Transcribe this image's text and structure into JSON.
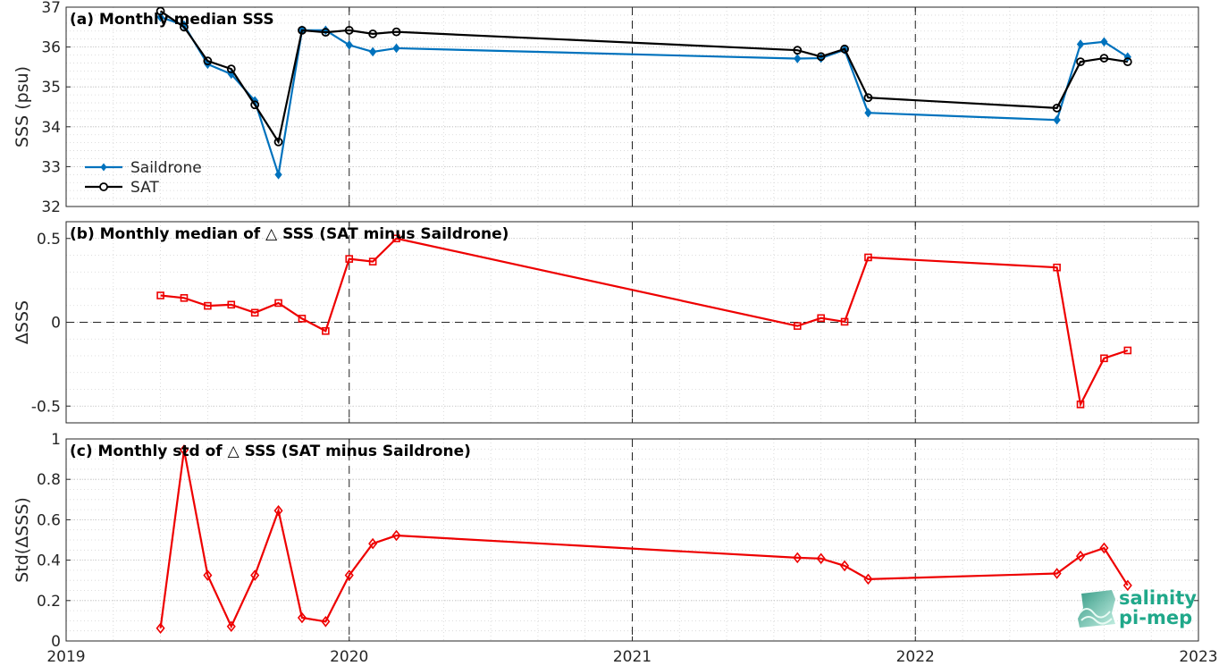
{
  "chart_data": [
    {
      "type": "line",
      "title": "(a) Monthly median SSS",
      "ylabel": "SSS (psu)",
      "ylim": [
        32,
        37
      ],
      "yticks": [
        32,
        33,
        34,
        35,
        36,
        37
      ],
      "xlim": [
        "2019-01",
        "2023-01"
      ],
      "xticks": [
        "2019",
        "2020",
        "2021",
        "2022",
        "2023"
      ],
      "grid": true,
      "legend_position": "bottom-left",
      "x": [
        "2019-05",
        "2019-06",
        "2019-07",
        "2019-08",
        "2019-09",
        "2019-10",
        "2019-11",
        "2019-12",
        "2020-01",
        "2020-02",
        "2020-03",
        "2021-08",
        "2021-09",
        "2021-10",
        "2021-11",
        "2022-07",
        "2022-08",
        "2022-09",
        "2022-10"
      ],
      "series": [
        {
          "name": "Saildrone",
          "color": "#0072bd",
          "marker": "diamond-filled",
          "values": [
            36.75,
            36.55,
            35.57,
            35.32,
            34.65,
            32.8,
            36.42,
            36.42,
            36.05,
            35.88,
            35.97,
            35.71,
            35.72,
            35.93,
            34.35,
            34.17,
            36.07,
            36.13,
            35.75
          ]
        },
        {
          "name": "SAT",
          "color": "#000000",
          "marker": "circle-open",
          "values": [
            36.9,
            36.5,
            35.65,
            35.45,
            34.55,
            33.62,
            36.42,
            36.37,
            36.42,
            36.33,
            36.38,
            35.92,
            35.76,
            35.95,
            34.73,
            34.47,
            35.63,
            35.72,
            35.63
          ]
        }
      ]
    },
    {
      "type": "line",
      "title": "(b) Monthly median of △ SSS (SAT minus Saildrone)",
      "ylabel": "ΔSSS",
      "ylim": [
        -0.6,
        0.6
      ],
      "yticks": [
        -0.5,
        0,
        0.5
      ],
      "ytick_labels": [
        "-0.5",
        "0",
        "0.5"
      ],
      "xlim": [
        "2019-01",
        "2023-01"
      ],
      "grid": true,
      "zero_line": true,
      "x": [
        "2019-05",
        "2019-06",
        "2019-07",
        "2019-08",
        "2019-09",
        "2019-10",
        "2019-11",
        "2019-12",
        "2020-01",
        "2020-02",
        "2020-03",
        "2021-08",
        "2021-09",
        "2021-10",
        "2021-11",
        "2022-07",
        "2022-08",
        "2022-09",
        "2022-10"
      ],
      "series": [
        {
          "color": "#ee0000",
          "marker": "square-open",
          "values": [
            0.16,
            0.145,
            0.098,
            0.105,
            0.057,
            0.115,
            0.022,
            -0.052,
            0.378,
            0.362,
            0.5,
            -0.022,
            0.025,
            0.003,
            0.387,
            0.327,
            -0.49,
            -0.215,
            -0.168
          ]
        }
      ]
    },
    {
      "type": "line",
      "title": "(c) Monthly std of △ SSS (SAT minus Saildrone)",
      "ylabel": "Std(ΔSSS)",
      "ylim": [
        0,
        1
      ],
      "yticks": [
        0,
        0.2,
        0.4,
        0.6,
        0.8,
        1
      ],
      "ytick_labels": [
        "0",
        "0.2",
        "0.4",
        "0.6",
        "0.8",
        "1"
      ],
      "xlim": [
        "2019-01",
        "2023-01"
      ],
      "xticks": [
        "2019",
        "2020",
        "2021",
        "2022",
        "2023"
      ],
      "grid": true,
      "x": [
        "2019-05",
        "2019-06",
        "2019-07",
        "2019-08",
        "2019-09",
        "2019-10",
        "2019-11",
        "2019-12",
        "2020-01",
        "2020-02",
        "2020-03",
        "2021-08",
        "2021-09",
        "2021-10",
        "2021-11",
        "2022-07",
        "2022-08",
        "2022-09",
        "2022-10"
      ],
      "series": [
        {
          "color": "#ee0000",
          "marker": "diamond-open",
          "values": [
            0.063,
            0.945,
            0.325,
            0.072,
            0.325,
            0.645,
            0.115,
            0.096,
            0.325,
            0.482,
            0.522,
            0.412,
            0.408,
            0.372,
            0.306,
            0.334,
            0.42,
            0.46,
            0.275
          ]
        }
      ]
    }
  ],
  "logo": {
    "line1": "salinity",
    "line2": "pi-mep",
    "color": "#20a88a"
  }
}
